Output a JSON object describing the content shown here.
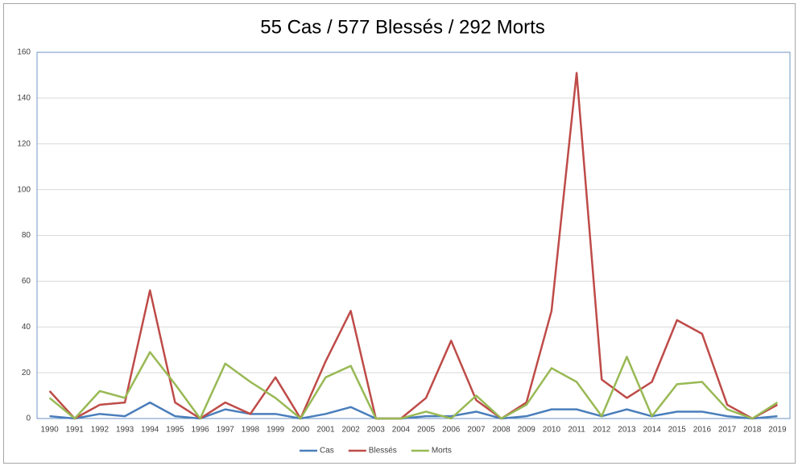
{
  "chart_data": {
    "type": "line",
    "title": "55 Cas / 577 Blessés / 292 Morts",
    "categories": [
      "1990",
      "1991",
      "1992",
      "1993",
      "1994",
      "1995",
      "1996",
      "1997",
      "1998",
      "1999",
      "2000",
      "2001",
      "2002",
      "2003",
      "2004",
      "2005",
      "2006",
      "2007",
      "2008",
      "2009",
      "2010",
      "2011",
      "2012",
      "2013",
      "2014",
      "2015",
      "2016",
      "2017",
      "2018",
      "2019"
    ],
    "series": [
      {
        "name": "Cas",
        "color": "#4a7ebb",
        "values": [
          1,
          0,
          2,
          1,
          7,
          1,
          0,
          4,
          2,
          2,
          0,
          2,
          5,
          0,
          0,
          1,
          1,
          3,
          0,
          1,
          4,
          4,
          1,
          4,
          1,
          3,
          3,
          1,
          0,
          1
        ]
      },
      {
        "name": "Blessés",
        "color": "#be4b48",
        "values": [
          12,
          0,
          6,
          7,
          56,
          7,
          0,
          7,
          2,
          18,
          0,
          25,
          47,
          0,
          0,
          9,
          34,
          8,
          0,
          7,
          47,
          151,
          17,
          9,
          16,
          43,
          37,
          6,
          0,
          6
        ]
      },
      {
        "name": "Morts",
        "color": "#98b954",
        "values": [
          9,
          0,
          12,
          9,
          29,
          15,
          0,
          24,
          16,
          9,
          0,
          18,
          23,
          0,
          0,
          3,
          0,
          10,
          0,
          6,
          22,
          16,
          1,
          27,
          1,
          15,
          16,
          4,
          0,
          7
        ]
      }
    ],
    "ylim": [
      0,
      160
    ],
    "yticks": [
      0,
      20,
      40,
      60,
      80,
      100,
      120,
      140,
      160
    ],
    "grid": true,
    "legend": "bottom"
  }
}
